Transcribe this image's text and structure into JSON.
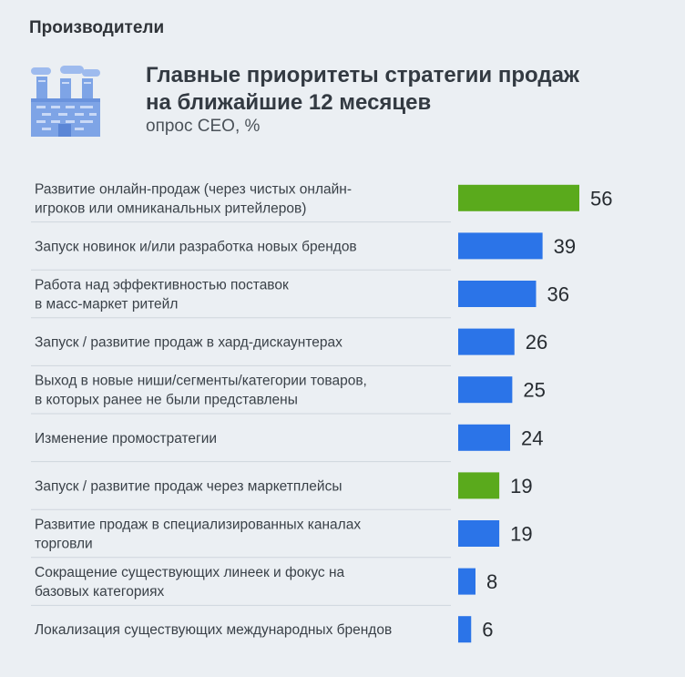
{
  "header": {
    "section": "Производители",
    "title_line1": "Главные приоритеты стратегии продаж",
    "title_line2": "на ближайшие 12 месяцев",
    "subtitle": "опрос CEO, %"
  },
  "icon": "factory-icon",
  "colors": {
    "highlight": "#5aaa1c",
    "default": "#2b74e8",
    "icon": "#7ea4e6",
    "divider": "#cfd6dd"
  },
  "chart_data": {
    "type": "bar",
    "orientation": "horizontal",
    "title": "Главные приоритеты стратегии продаж на ближайшие 12 месяцев",
    "subtitle": "опрос CEO, %",
    "categories": [
      [
        "Развитие онлайн-продаж (через чистых онлайн-",
        "игроков или омниканальных ритейлеров)"
      ],
      [
        "Запуск новинок и/или разработка новых брендов"
      ],
      [
        "Работа над эффективностью поставок",
        "в масс-маркет ритейл"
      ],
      [
        "Запуск / развитие продаж в хард-дискаунтерах"
      ],
      [
        "Выход в новые ниши/сегменты/категории товаров,",
        "в которых ранее не были представлены"
      ],
      [
        "Изменение промостратегии"
      ],
      [
        "Запуск / развитие продаж через маркетплейсы"
      ],
      [
        "Развитие продаж в специализированных каналах",
        "торговли"
      ],
      [
        "Сокращение существующих линеек и фокус на",
        "базовых категориях"
      ],
      [
        "Локализация существующих международных брендов"
      ]
    ],
    "values": [
      56,
      39,
      36,
      26,
      25,
      24,
      19,
      19,
      8,
      6
    ],
    "highlighted": [
      true,
      false,
      false,
      false,
      false,
      false,
      true,
      false,
      false,
      false
    ],
    "xlim": [
      0,
      56
    ],
    "grid": false,
    "legend": "none"
  }
}
